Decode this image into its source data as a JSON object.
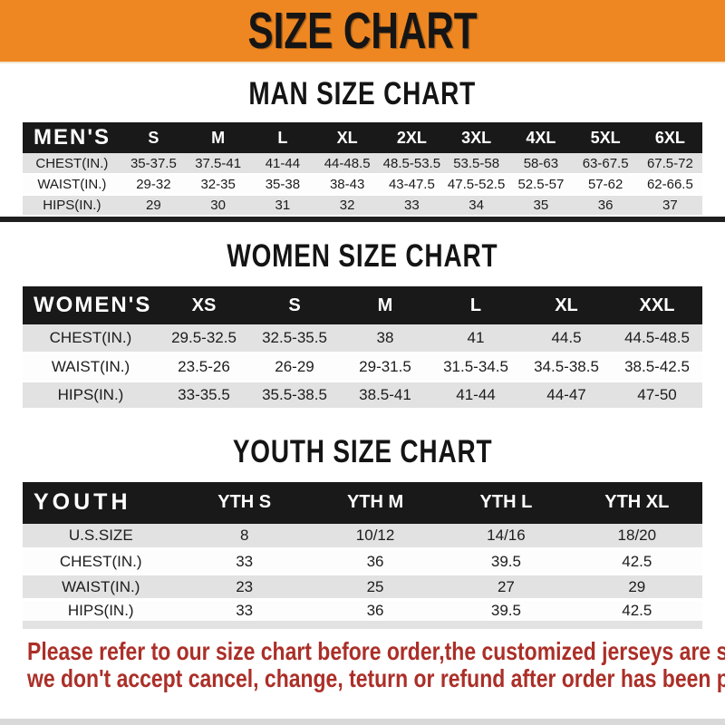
{
  "banner": {
    "title": "SIZE CHART"
  },
  "men": {
    "heading": "MAN SIZE CHART",
    "table": {
      "corner": "MEN'S",
      "sizes": [
        "S",
        "M",
        "L",
        "XL",
        "2XL",
        "3XL",
        "4XL",
        "5XL",
        "6XL"
      ],
      "rows": [
        {
          "label": "CHEST(IN.)",
          "values": [
            "35-37.5",
            "37.5-41",
            "41-44",
            "44-48.5",
            "48.5-53.5",
            "53.5-58",
            "58-63",
            "63-67.5",
            "67.5-72"
          ]
        },
        {
          "label": "WAIST(IN.)",
          "values": [
            "29-32",
            "32-35",
            "35-38",
            "38-43",
            "43-47.5",
            "47.5-52.5",
            "52.5-57",
            "57-62",
            "62-66.5"
          ]
        },
        {
          "label": "HIPS(IN.)",
          "values": [
            "29",
            "30",
            "31",
            "32",
            "33",
            "34",
            "35",
            "36",
            "37"
          ]
        }
      ]
    }
  },
  "women": {
    "heading": "WOMEN SIZE CHART",
    "table": {
      "corner": "WOMEN'S",
      "sizes": [
        "XS",
        "S",
        "M",
        "L",
        "XL",
        "XXL"
      ],
      "rows": [
        {
          "label": "CHEST(IN.)",
          "values": [
            "29.5-32.5",
            "32.5-35.5",
            "38",
            "41",
            "44.5",
            "44.5-48.5"
          ]
        },
        {
          "label": "WAIST(IN.)",
          "values": [
            "23.5-26",
            "26-29",
            "29-31.5",
            "31.5-34.5",
            "34.5-38.5",
            "38.5-42.5"
          ]
        },
        {
          "label": "HIPS(IN.)",
          "values": [
            "33-35.5",
            "35.5-38.5",
            "38.5-41",
            "41-44",
            "44-47",
            "47-50"
          ]
        }
      ]
    }
  },
  "youth": {
    "heading": "YOUTH SIZE CHART",
    "table": {
      "corner": "YOUTH",
      "sizes": [
        "YTH S",
        "YTH M",
        "YTH L",
        "YTH XL"
      ],
      "rows": [
        {
          "label": "U.S.SIZE",
          "values": [
            "8",
            "10/12",
            "14/16",
            "18/20"
          ]
        },
        {
          "label": "CHEST(IN.)",
          "values": [
            "33",
            "36",
            "39.5",
            "42.5"
          ]
        },
        {
          "label": "WAIST(IN.)",
          "values": [
            "23",
            "25",
            "27",
            "29"
          ]
        },
        {
          "label": "HIPS(IN.)",
          "values": [
            "33",
            "36",
            "39.5",
            "42.5"
          ]
        }
      ]
    }
  },
  "footer": {
    "line1": "Please refer to our size chart before order,the customized jerseys are special products,",
    "line2": "we don't accept cancel, change, teturn or refund after order has been placed!"
  },
  "colors": {
    "banner_bg": "#ee8722",
    "table_header_bg": "#191919",
    "row_stripe": "#e2e2e2",
    "footer_text": "#ab2f28"
  }
}
